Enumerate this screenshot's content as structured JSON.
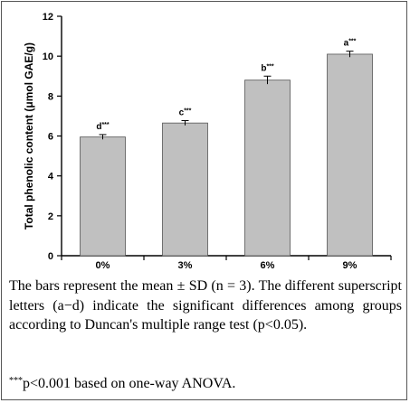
{
  "colors": {
    "bar_fill": "#c0c0c0",
    "bar_stroke": "#555555",
    "axis": "#000000",
    "frame": "#555555"
  },
  "chart_data": {
    "type": "bar",
    "categories": [
      "0%",
      "3%",
      "6%",
      "9%"
    ],
    "values": [
      5.95,
      6.65,
      8.8,
      10.1
    ],
    "error": [
      0.12,
      0.12,
      0.2,
      0.15
    ],
    "labels": [
      "d***",
      "c***",
      "b***",
      "a***"
    ],
    "label_letters": [
      "d",
      "c",
      "b",
      "a"
    ],
    "label_marks": [
      "***",
      "***",
      "***",
      "***"
    ],
    "ylabel": "Total phenolic content (μmol GAE/g)",
    "xlabel": "",
    "ylim": [
      0,
      12
    ],
    "yticks": [
      0,
      2,
      4,
      6,
      8,
      10,
      12
    ],
    "ytick_labels": [
      "0",
      "2",
      "4",
      "6",
      "8",
      "10",
      "12"
    ],
    "grid": false,
    "legend": "none"
  },
  "caption": {
    "text": "The bars represent the mean ± SD (n = 3). The different superscript letters (a−d) indicate the significant differences among groups according to Duncan's multiple range test (p<0.05)."
  },
  "footnote": {
    "marker": "***",
    "text": "p<0.001 based on one-way ANOVA."
  }
}
